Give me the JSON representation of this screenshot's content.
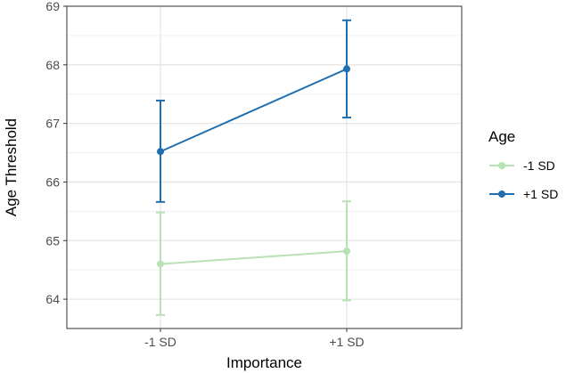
{
  "chart_data": {
    "type": "line",
    "xlabel": "Importance",
    "ylabel": "Age Threshold",
    "categories": [
      "-1 SD",
      "+1 SD"
    ],
    "ylim": [
      63.5,
      69
    ],
    "yticks": [
      64,
      65,
      66,
      67,
      68,
      69
    ],
    "ytick_labels": [
      "64",
      "65",
      "66",
      "67",
      "68",
      "69"
    ],
    "grid": true,
    "legend": {
      "title": "Age",
      "position": "right"
    },
    "series": [
      {
        "name": "-1 SD",
        "color": "#b7e2b4",
        "values": [
          64.6,
          64.82
        ],
        "lower": [
          63.73,
          63.98
        ],
        "upper": [
          65.48,
          65.67
        ]
      },
      {
        "name": "+1 SD",
        "color": "#1f6fb0",
        "values": [
          66.52,
          67.93
        ],
        "lower": [
          65.66,
          67.1
        ],
        "upper": [
          67.39,
          68.76
        ]
      }
    ]
  }
}
